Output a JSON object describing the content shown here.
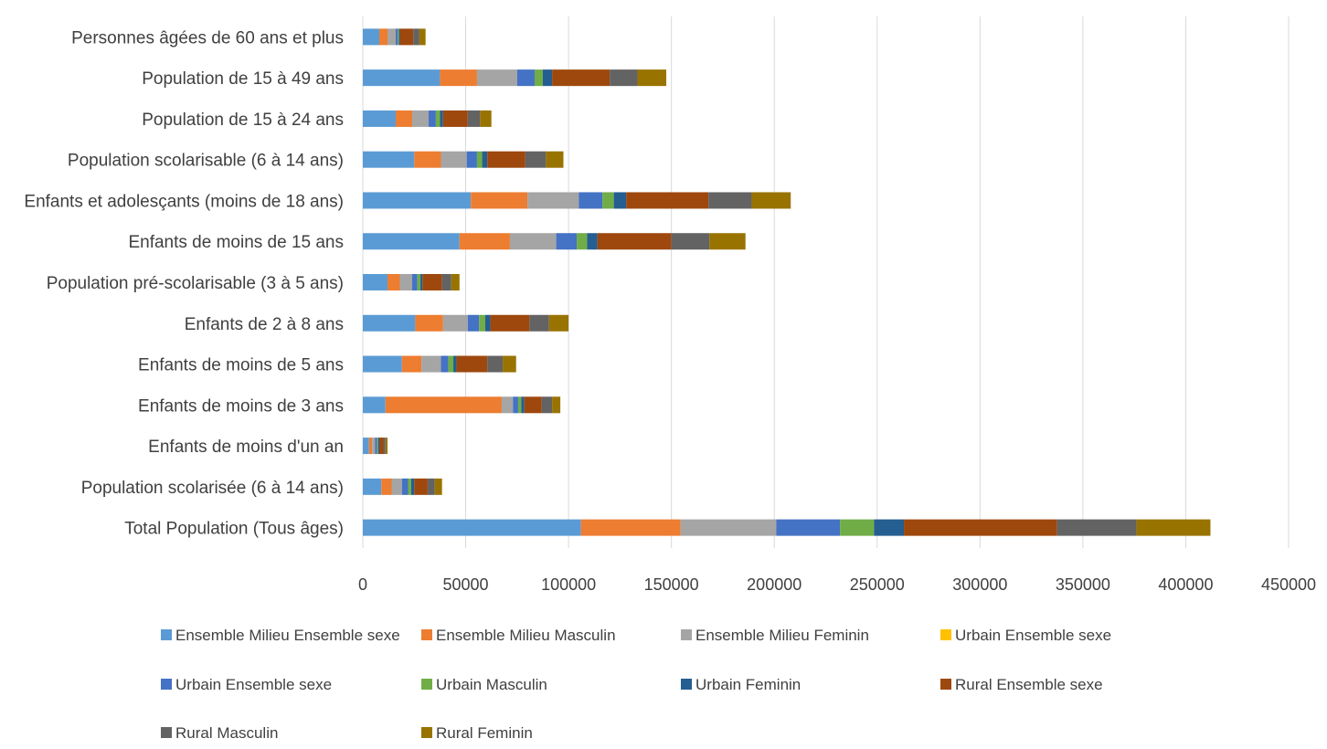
{
  "chart_data": {
    "type": "bar",
    "orientation": "horizontal",
    "stacked": true,
    "title": "",
    "xlabel": "",
    "ylabel": "",
    "xlim": [
      0,
      450000
    ],
    "x_ticks": [
      0,
      50000,
      100000,
      150000,
      200000,
      250000,
      300000,
      350000,
      400000,
      450000
    ],
    "x_tick_labels": [
      "0",
      "50000",
      "100000",
      "150000",
      "200000",
      "250000",
      "300000",
      "350000",
      "400000",
      "450000"
    ],
    "grid": "vertical",
    "legend_position": "bottom",
    "categories": [
      "Total Population (Tous âges)",
      "Population scolarisée (6 à 14 ans)",
      "Enfants de moins d'un an",
      "Enfants de moins de 3 ans",
      "Enfants de moins de 5 ans",
      "Enfants de 2 à 8 ans",
      "Population pré-scolarisable (3 à 5 ans)",
      "Enfants de moins de 15 ans",
      "Enfants et adolesçants (moins de 18 ans)",
      "Population scolarisable (6 à 14 ans)",
      "Population de 15 à 24 ans",
      "Population de 15 à 49 ans",
      "Personnes âgées de 60 ans et plus"
    ],
    "series": [
      {
        "name": "Ensemble Milieu Ensemble sexe",
        "color": "#5B9BD5",
        "values": [
          106000,
          9000,
          3000,
          11000,
          19000,
          25500,
          12000,
          47000,
          52500,
          25000,
          16000,
          37500,
          8000
        ]
      },
      {
        "name": "Ensemble Milieu Masculin",
        "color": "#ED7D31",
        "values": [
          48500,
          5000,
          1500,
          56500,
          9500,
          13500,
          6000,
          24500,
          27500,
          13000,
          8000,
          18000,
          4000
        ]
      },
      {
        "name": "Ensemble Milieu Feminin",
        "color": "#A5A5A5",
        "values": [
          46500,
          5000,
          1500,
          5500,
          9500,
          12000,
          6000,
          22500,
          25000,
          12500,
          8000,
          19500,
          4000
        ]
      },
      {
        "name": "Urbain Ensemble sexe",
        "color": "#FFC000",
        "values": [
          0,
          0,
          0,
          0,
          0,
          0,
          0,
          0,
          0,
          0,
          0,
          0,
          0
        ]
      },
      {
        "name": "Urbain Ensemble sexe",
        "color": "#4472C4",
        "values": [
          31000,
          3000,
          1000,
          2500,
          3500,
          5500,
          2500,
          10000,
          11500,
          5000,
          3500,
          8500,
          1000
        ]
      },
      {
        "name": "Urbain Masculin",
        "color": "#70AD47",
        "values": [
          16500,
          1500,
          500,
          1500,
          2500,
          3000,
          1500,
          5000,
          5500,
          2500,
          2000,
          4000,
          500
        ]
      },
      {
        "name": "Urbain Feminin",
        "color": "#255E91",
        "values": [
          14500,
          1500,
          500,
          1500,
          1500,
          2500,
          1000,
          5000,
          6000,
          2500,
          1500,
          4500,
          500
        ]
      },
      {
        "name": "Rural Ensemble sexe",
        "color": "#9E480E",
        "values": [
          74500,
          6500,
          2000,
          8500,
          15000,
          19000,
          9500,
          36000,
          40000,
          18500,
          12000,
          28000,
          6500
        ]
      },
      {
        "name": "Rural Masculin",
        "color": "#636363",
        "values": [
          38500,
          3500,
          1000,
          5000,
          7500,
          9500,
          4500,
          18500,
          21000,
          10000,
          6000,
          13500,
          3000
        ]
      },
      {
        "name": "Rural Feminin",
        "color": "#997300",
        "values": [
          36000,
          3500,
          1000,
          4000,
          6500,
          9500,
          4000,
          17500,
          19000,
          8500,
          5500,
          14000,
          3000
        ]
      }
    ]
  }
}
